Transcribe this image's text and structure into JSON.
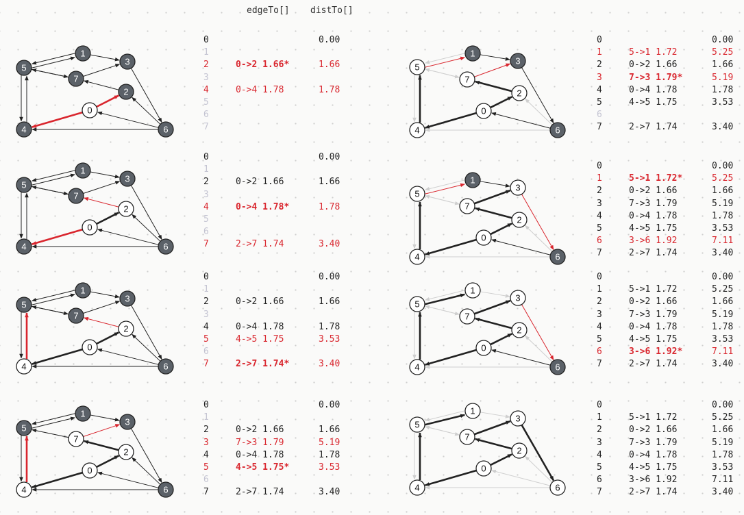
{
  "headers": {
    "edge_to": "edgeTo[]",
    "dist_to": "distTo[]"
  },
  "colors": {
    "red": "#d9262e",
    "dark_node": "#5b6168",
    "node_stroke": "#222222",
    "faint": "#cfcfcf",
    "text": "#222222"
  },
  "graph": {
    "nodes": [
      {
        "id": "0",
        "label": "0"
      },
      {
        "id": "1",
        "label": "1"
      },
      {
        "id": "2",
        "label": "2"
      },
      {
        "id": "3",
        "label": "3"
      },
      {
        "id": "4",
        "label": "4"
      },
      {
        "id": "5",
        "label": "5"
      },
      {
        "id": "6",
        "label": "6"
      },
      {
        "id": "7",
        "label": "7"
      }
    ],
    "edges": [
      {
        "from": 0,
        "to": 2,
        "weight": "1.66"
      },
      {
        "from": 0,
        "to": 4,
        "weight": "1.78"
      },
      {
        "from": 1,
        "to": 3,
        "weight": "1.72"
      },
      {
        "from": 2,
        "to": 7,
        "weight": "1.74"
      },
      {
        "from": 3,
        "to": 6,
        "weight": "1.92"
      },
      {
        "from": 4,
        "to": 5,
        "weight": "1.75"
      },
      {
        "from": 5,
        "to": 1,
        "weight": "1.72"
      },
      {
        "from": 5,
        "to": 4,
        "weight": "1.75"
      },
      {
        "from": 5,
        "to": 7,
        "weight": "1.79"
      },
      {
        "from": 6,
        "to": 0,
        "weight": "1.66"
      },
      {
        "from": 6,
        "to": 2,
        "weight": "1.79"
      },
      {
        "from": 6,
        "to": 4,
        "weight": "1.78"
      },
      {
        "from": 7,
        "to": 3,
        "weight": "1.79"
      },
      {
        "from": 7,
        "to": 5,
        "weight": "1.72"
      },
      {
        "from": 1,
        "to": 5,
        "weight": "1.72"
      }
    ]
  },
  "steps": [
    {
      "id": "step-1",
      "node_styles": [
        "white",
        "dark",
        "dark",
        "dark",
        "dark",
        "dark",
        "dark",
        "dark"
      ],
      "edge_styles": [
        "new",
        "new",
        "normal",
        "normal",
        "normal",
        "normal",
        "normal",
        "normal",
        "normal",
        "normal",
        "normal",
        "normal",
        "normal",
        "normal",
        "normal"
      ],
      "table": [
        {
          "v": "0",
          "edge": "",
          "dist": "0.00",
          "style": "normal"
        },
        {
          "v": "1",
          "edge": "",
          "dist": "",
          "style": "dim"
        },
        {
          "v": "2",
          "edge": "0->2 1.66*",
          "dist": "1.66",
          "style": "newbold"
        },
        {
          "v": "3",
          "edge": "",
          "dist": "",
          "style": "dim"
        },
        {
          "v": "4",
          "edge": "0->4 1.78",
          "dist": "1.78",
          "style": "red"
        },
        {
          "v": "5",
          "edge": "",
          "dist": "",
          "style": "dim"
        },
        {
          "v": "6",
          "edge": "",
          "dist": "",
          "style": "dim"
        },
        {
          "v": "7",
          "edge": "",
          "dist": "",
          "style": "dim"
        }
      ]
    },
    {
      "id": "step-2",
      "node_styles": [
        "white",
        "dark",
        "white",
        "dark",
        "dark",
        "dark",
        "dark",
        "dark"
      ],
      "edge_styles": [
        "tree",
        "new",
        "normal",
        "new",
        "normal",
        "normal",
        "normal",
        "normal",
        "normal",
        "normal",
        "normal",
        "normal",
        "normal",
        "normal",
        "normal"
      ],
      "table": [
        {
          "v": "0",
          "edge": "",
          "dist": "0.00",
          "style": "normal"
        },
        {
          "v": "1",
          "edge": "",
          "dist": "",
          "style": "dim"
        },
        {
          "v": "2",
          "edge": "0->2 1.66",
          "dist": "1.66",
          "style": "normal"
        },
        {
          "v": "3",
          "edge": "",
          "dist": "",
          "style": "dim"
        },
        {
          "v": "4",
          "edge": "0->4 1.78*",
          "dist": "1.78",
          "style": "newbold"
        },
        {
          "v": "5",
          "edge": "",
          "dist": "",
          "style": "dim"
        },
        {
          "v": "6",
          "edge": "",
          "dist": "",
          "style": "dim"
        },
        {
          "v": "7",
          "edge": "2->7 1.74",
          "dist": "3.40",
          "style": "red"
        }
      ]
    },
    {
      "id": "step-3",
      "node_styles": [
        "white",
        "dark",
        "white",
        "dark",
        "white",
        "dark",
        "dark",
        "dark"
      ],
      "edge_styles": [
        "tree",
        "tree",
        "normal",
        "new",
        "normal",
        "new",
        "normal",
        "normal",
        "normal",
        "normal",
        "normal",
        "normal",
        "normal",
        "normal",
        "normal"
      ],
      "table": [
        {
          "v": "0",
          "edge": "",
          "dist": "0.00",
          "style": "normal"
        },
        {
          "v": "1",
          "edge": "",
          "dist": "",
          "style": "dim"
        },
        {
          "v": "2",
          "edge": "0->2 1.66",
          "dist": "1.66",
          "style": "normal"
        },
        {
          "v": "3",
          "edge": "",
          "dist": "",
          "style": "dim"
        },
        {
          "v": "4",
          "edge": "0->4 1.78",
          "dist": "1.78",
          "style": "normal"
        },
        {
          "v": "5",
          "edge": "4->5 1.75",
          "dist": "3.53",
          "style": "red"
        },
        {
          "v": "6",
          "edge": "",
          "dist": "",
          "style": "dim"
        },
        {
          "v": "7",
          "edge": "2->7 1.74*",
          "dist": "3.40",
          "style": "newbold"
        }
      ]
    },
    {
      "id": "step-4",
      "node_styles": [
        "white",
        "dark",
        "white",
        "dark",
        "white",
        "dark",
        "dark",
        "white"
      ],
      "edge_styles": [
        "tree",
        "tree",
        "normal",
        "tree",
        "normal",
        "new",
        "normal",
        "normal",
        "faint",
        "normal",
        "normal",
        "normal",
        "new",
        "normal",
        "normal"
      ],
      "table": [
        {
          "v": "0",
          "edge": "",
          "dist": "0.00",
          "style": "normal"
        },
        {
          "v": "1",
          "edge": "",
          "dist": "",
          "style": "dim"
        },
        {
          "v": "2",
          "edge": "0->2 1.66",
          "dist": "1.66",
          "style": "normal"
        },
        {
          "v": "3",
          "edge": "7->3 1.79",
          "dist": "5.19",
          "style": "red"
        },
        {
          "v": "4",
          "edge": "0->4 1.78",
          "dist": "1.78",
          "style": "normal"
        },
        {
          "v": "5",
          "edge": "4->5 1.75*",
          "dist": "3.53",
          "style": "newbold"
        },
        {
          "v": "6",
          "edge": "",
          "dist": "",
          "style": "dim"
        },
        {
          "v": "7",
          "edge": "2->7 1.74",
          "dist": "3.40",
          "style": "normal"
        }
      ]
    },
    {
      "id": "step-5",
      "node_styles": [
        "white",
        "dark",
        "white",
        "dark",
        "white",
        "white",
        "dark",
        "white"
      ],
      "edge_styles": [
        "tree",
        "tree",
        "normal",
        "tree",
        "normal",
        "tree",
        "new",
        "faint",
        "faint",
        "normal",
        "faint",
        "faint",
        "new",
        "faint",
        "faint"
      ],
      "table": [
        {
          "v": "0",
          "edge": "",
          "dist": "0.00",
          "style": "normal"
        },
        {
          "v": "1",
          "edge": "5->1 1.72",
          "dist": "5.25",
          "style": "red"
        },
        {
          "v": "2",
          "edge": "0->2 1.66",
          "dist": "1.66",
          "style": "normal"
        },
        {
          "v": "3",
          "edge": "7->3 1.79*",
          "dist": "5.19",
          "style": "newbold"
        },
        {
          "v": "4",
          "edge": "0->4 1.78",
          "dist": "1.78",
          "style": "normal"
        },
        {
          "v": "5",
          "edge": "4->5 1.75",
          "dist": "3.53",
          "style": "normal"
        },
        {
          "v": "6",
          "edge": "",
          "dist": "",
          "style": "dim"
        },
        {
          "v": "7",
          "edge": "2->7 1.74",
          "dist": "3.40",
          "style": "normal"
        }
      ]
    },
    {
      "id": "step-6",
      "node_styles": [
        "white",
        "dark",
        "white",
        "white",
        "white",
        "white",
        "dark",
        "white"
      ],
      "edge_styles": [
        "tree",
        "tree",
        "normal",
        "tree",
        "new",
        "tree",
        "new",
        "faint",
        "faint",
        "normal",
        "faint",
        "faint",
        "tree",
        "faint",
        "faint"
      ],
      "table": [
        {
          "v": "0",
          "edge": "",
          "dist": "0.00",
          "style": "normal"
        },
        {
          "v": "1",
          "edge": "5->1 1.72*",
          "dist": "5.25",
          "style": "newbold"
        },
        {
          "v": "2",
          "edge": "0->2 1.66",
          "dist": "1.66",
          "style": "normal"
        },
        {
          "v": "3",
          "edge": "7->3 1.79",
          "dist": "5.19",
          "style": "normal"
        },
        {
          "v": "4",
          "edge": "0->4 1.78",
          "dist": "1.78",
          "style": "normal"
        },
        {
          "v": "5",
          "edge": "4->5 1.75",
          "dist": "3.53",
          "style": "normal"
        },
        {
          "v": "6",
          "edge": "3->6 1.92",
          "dist": "7.11",
          "style": "red"
        },
        {
          "v": "7",
          "edge": "2->7 1.74",
          "dist": "3.40",
          "style": "normal"
        }
      ]
    },
    {
      "id": "step-7",
      "node_styles": [
        "white",
        "white",
        "white",
        "white",
        "white",
        "white",
        "dark",
        "white"
      ],
      "edge_styles": [
        "tree",
        "tree",
        "faint",
        "tree",
        "new",
        "tree",
        "tree",
        "faint",
        "faint",
        "normal",
        "faint",
        "faint",
        "tree",
        "faint",
        "faint"
      ],
      "table": [
        {
          "v": "0",
          "edge": "",
          "dist": "0.00",
          "style": "normal"
        },
        {
          "v": "1",
          "edge": "5->1 1.72",
          "dist": "5.25",
          "style": "normal"
        },
        {
          "v": "2",
          "edge": "0->2 1.66",
          "dist": "1.66",
          "style": "normal"
        },
        {
          "v": "3",
          "edge": "7->3 1.79",
          "dist": "5.19",
          "style": "normal"
        },
        {
          "v": "4",
          "edge": "0->4 1.78",
          "dist": "1.78",
          "style": "normal"
        },
        {
          "v": "5",
          "edge": "4->5 1.75",
          "dist": "3.53",
          "style": "normal"
        },
        {
          "v": "6",
          "edge": "3->6 1.92*",
          "dist": "7.11",
          "style": "newbold"
        },
        {
          "v": "7",
          "edge": "2->7 1.74",
          "dist": "3.40",
          "style": "normal"
        }
      ]
    },
    {
      "id": "step-8",
      "node_styles": [
        "white",
        "white",
        "white",
        "white",
        "white",
        "white",
        "white",
        "white"
      ],
      "edge_styles": [
        "tree",
        "tree",
        "faint",
        "tree",
        "tree",
        "tree",
        "tree",
        "faint",
        "faint",
        "faint",
        "faint",
        "faint",
        "tree",
        "faint",
        "faint"
      ],
      "table": [
        {
          "v": "0",
          "edge": "",
          "dist": "0.00",
          "style": "normal"
        },
        {
          "v": "1",
          "edge": "5->1 1.72",
          "dist": "5.25",
          "style": "normal"
        },
        {
          "v": "2",
          "edge": "0->2 1.66",
          "dist": "1.66",
          "style": "normal"
        },
        {
          "v": "3",
          "edge": "7->3 1.79",
          "dist": "5.19",
          "style": "normal"
        },
        {
          "v": "4",
          "edge": "0->4 1.78",
          "dist": "1.78",
          "style": "normal"
        },
        {
          "v": "5",
          "edge": "4->5 1.75",
          "dist": "3.53",
          "style": "normal"
        },
        {
          "v": "6",
          "edge": "3->6 1.92",
          "dist": "7.11",
          "style": "normal"
        },
        {
          "v": "7",
          "edge": "2->7 1.74",
          "dist": "3.40",
          "style": "normal"
        }
      ]
    }
  ]
}
